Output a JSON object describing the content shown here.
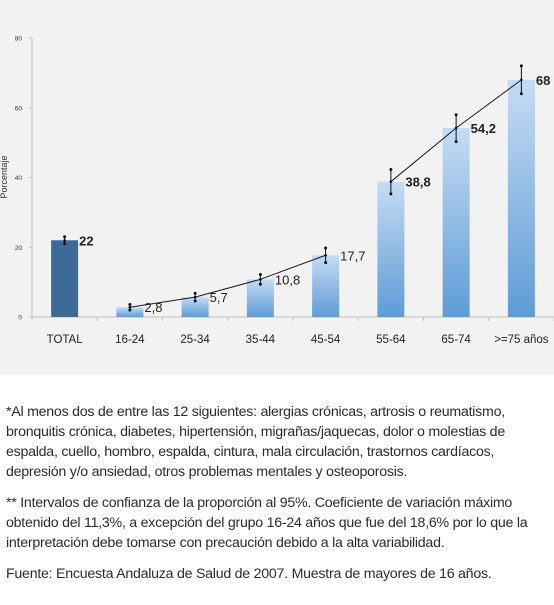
{
  "chart_data": {
    "type": "bar",
    "title": "",
    "xlabel": "",
    "ylabel": "Porcentaje",
    "ylim": [
      0,
      80
    ],
    "yticks": [
      0,
      20,
      40,
      60,
      80
    ],
    "grid": false,
    "categories": [
      "TOTAL",
      "16-24",
      "25-34",
      "35-44",
      "45-54",
      "55-64",
      "65-74",
      ">=75 años"
    ],
    "values": [
      22,
      2.8,
      5.7,
      10.8,
      17.7,
      38.8,
      54.2,
      68
    ],
    "value_labels": [
      "22",
      "2,8",
      "5,7",
      "10,8",
      "17,7",
      "38,8",
      "54,2",
      "68"
    ],
    "ci_low": [
      21,
      2.0,
      4.6,
      9.4,
      15.6,
      35.3,
      50.3,
      64.0
    ],
    "ci_high": [
      23,
      3.6,
      6.8,
      12.2,
      19.8,
      42.3,
      58.0,
      72.0
    ],
    "trend_segments": [
      [
        1,
        4
      ],
      [
        5,
        7
      ]
    ],
    "colors": {
      "total_bar": "#3d6b95",
      "bar_light": "#c5dcf3",
      "bar_dark": "#5e9bd6",
      "axis": "#bfbfbf",
      "label": "#222222"
    }
  },
  "notes": {
    "note1": "*Al menos dos de entre las 12 siguientes: alergias crónicas, artrosis o reumatismo, bronquitis crónica, diabetes, hipertensión, migrañas/jaquecas, dolor o molestias de espalda, cuello, hombro, espalda, cintura, mala circulación, trastornos cardíacos, depresión y/o ansiedad, otros problemas mentales y osteoporosis.",
    "note2": "** Intervalos de confianza de la proporción al 95%. Coeficiente de variación máximo obtenido del 11,3%, a excepción del grupo 16-24 años que fue del 18,6% por lo que la interpretación debe tomarse con precaución debido a la alta variabilidad.",
    "source": "Fuente: Encuesta Andaluza de Salud de 2007. Muestra de mayores de 16 años."
  }
}
